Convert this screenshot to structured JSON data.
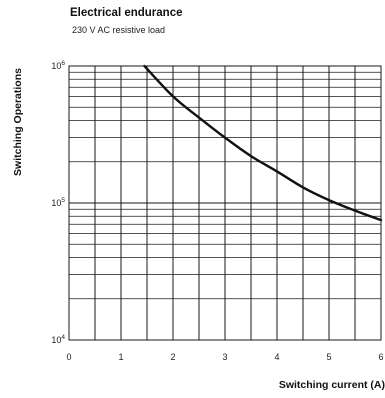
{
  "chart_data": {
    "type": "line",
    "title": "Electrical endurance",
    "subtitle": "230 V AC resistive load",
    "xlabel": "Switching current (A)",
    "ylabel": "Switching Operations",
    "xlim": [
      0,
      6
    ],
    "ylim": [
      10000,
      1000000
    ],
    "y_scale": "log",
    "grid": true,
    "x_ticks": [
      "0",
      "1",
      "2",
      "3",
      "4",
      "5",
      "6"
    ],
    "y_tick_values": [
      10000,
      100000,
      1000000
    ],
    "y_tick_mantissa": [
      "10",
      "10",
      "10"
    ],
    "y_tick_exponent": [
      "4",
      "5",
      "6"
    ],
    "series": [
      {
        "x": [
          1.45,
          2.0,
          2.5,
          3.0,
          3.5,
          4.0,
          4.5,
          5.0,
          5.5,
          6.0
        ],
        "y": [
          1000000,
          600000,
          420000,
          300000,
          220000,
          170000,
          130000,
          105000,
          88000,
          75000
        ]
      }
    ]
  }
}
